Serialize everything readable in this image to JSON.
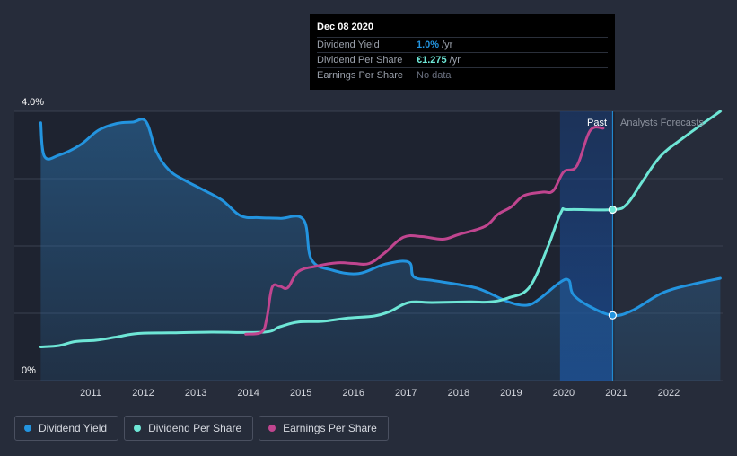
{
  "tooltip": {
    "date": "Dec 08 2020",
    "rows": [
      {
        "label": "Dividend Yield",
        "value": "1.0%",
        "unit": "/yr",
        "color": "#2394df"
      },
      {
        "label": "Dividend Per Share",
        "value": "€1.275",
        "unit": "/yr",
        "color": "#6ee6d6"
      },
      {
        "label": "Earnings Per Share",
        "value": "No data",
        "unit": "",
        "color": "#6b7180"
      }
    ]
  },
  "legend": [
    {
      "label": "Dividend Yield",
      "color": "#2394df"
    },
    {
      "label": "Dividend Per Share",
      "color": "#6ee6d6"
    },
    {
      "label": "Earnings Per Share",
      "color": "#c0458f"
    }
  ],
  "chart_data": {
    "type": "line",
    "y_top_label": "4.0%",
    "y_bottom_label": "0%",
    "ylim": [
      0,
      4.0
    ],
    "xlim": [
      2010.0,
      2023.0
    ],
    "x_ticks": [
      "2011",
      "2012",
      "2013",
      "2014",
      "2015",
      "2016",
      "2017",
      "2018",
      "2019",
      "2020",
      "2021",
      "2022"
    ],
    "past_label": "Past",
    "forecast_label": "Analysts Forecasts",
    "past_region": [
      2019.93,
      2020.93
    ],
    "hover_x": 2020.93,
    "series": [
      {
        "name": "Dividend Yield",
        "color": "#2394df",
        "fill": true,
        "points": [
          [
            2010.05,
            3.83
          ],
          [
            2010.12,
            3.33
          ],
          [
            2010.4,
            3.35
          ],
          [
            2010.8,
            3.5
          ],
          [
            2011.15,
            3.72
          ],
          [
            2011.5,
            3.82
          ],
          [
            2011.8,
            3.84
          ],
          [
            2012.05,
            3.85
          ],
          [
            2012.25,
            3.4
          ],
          [
            2012.5,
            3.12
          ],
          [
            2012.8,
            2.97
          ],
          [
            2013.1,
            2.85
          ],
          [
            2013.5,
            2.68
          ],
          [
            2013.85,
            2.45
          ],
          [
            2014.2,
            2.42
          ],
          [
            2014.6,
            2.41
          ],
          [
            2015.05,
            2.39
          ],
          [
            2015.2,
            1.8
          ],
          [
            2015.6,
            1.64
          ],
          [
            2016.1,
            1.59
          ],
          [
            2016.6,
            1.73
          ],
          [
            2017.05,
            1.76
          ],
          [
            2017.15,
            1.54
          ],
          [
            2017.5,
            1.49
          ],
          [
            2018.2,
            1.4
          ],
          [
            2018.5,
            1.33
          ],
          [
            2018.95,
            1.17
          ],
          [
            2019.3,
            1.12
          ],
          [
            2019.55,
            1.22
          ],
          [
            2019.93,
            1.46
          ],
          [
            2020.1,
            1.49
          ],
          [
            2020.18,
            1.28
          ],
          [
            2020.5,
            1.1
          ],
          [
            2020.93,
            0.97
          ],
          [
            2021.3,
            1.04
          ],
          [
            2021.9,
            1.31
          ],
          [
            2022.5,
            1.44
          ],
          [
            2022.98,
            1.52
          ]
        ]
      },
      {
        "name": "Dividend Per Share",
        "color": "#6ee6d6",
        "fill": false,
        "points": [
          [
            2010.05,
            0.5
          ],
          [
            2010.4,
            0.52
          ],
          [
            2010.7,
            0.58
          ],
          [
            2011.1,
            0.6
          ],
          [
            2011.5,
            0.65
          ],
          [
            2011.9,
            0.7
          ],
          [
            2012.5,
            0.71
          ],
          [
            2013.3,
            0.72
          ],
          [
            2014.3,
            0.72
          ],
          [
            2014.6,
            0.8
          ],
          [
            2014.95,
            0.87
          ],
          [
            2015.4,
            0.88
          ],
          [
            2015.9,
            0.93
          ],
          [
            2016.4,
            0.96
          ],
          [
            2016.7,
            1.03
          ],
          [
            2017.05,
            1.16
          ],
          [
            2017.5,
            1.16
          ],
          [
            2018.2,
            1.17
          ],
          [
            2018.6,
            1.17
          ],
          [
            2018.95,
            1.23
          ],
          [
            2019.35,
            1.39
          ],
          [
            2019.7,
            1.99
          ],
          [
            2019.95,
            2.5
          ],
          [
            2020.1,
            2.54
          ],
          [
            2020.93,
            2.54
          ],
          [
            2021.2,
            2.62
          ],
          [
            2021.5,
            2.96
          ],
          [
            2021.85,
            3.34
          ],
          [
            2022.3,
            3.62
          ],
          [
            2022.98,
            4.0
          ]
        ]
      },
      {
        "name": "Earnings Per Share",
        "color": "#c0458f",
        "fill": false,
        "points": [
          [
            2013.95,
            0.69
          ],
          [
            2014.25,
            0.72
          ],
          [
            2014.35,
            0.92
          ],
          [
            2014.45,
            1.38
          ],
          [
            2014.6,
            1.4
          ],
          [
            2014.75,
            1.38
          ],
          [
            2014.95,
            1.62
          ],
          [
            2015.3,
            1.7
          ],
          [
            2015.7,
            1.75
          ],
          [
            2016.0,
            1.74
          ],
          [
            2016.3,
            1.74
          ],
          [
            2016.6,
            1.9
          ],
          [
            2016.95,
            2.13
          ],
          [
            2017.3,
            2.14
          ],
          [
            2017.7,
            2.1
          ],
          [
            2018.0,
            2.17
          ],
          [
            2018.5,
            2.29
          ],
          [
            2018.75,
            2.47
          ],
          [
            2019.0,
            2.58
          ],
          [
            2019.25,
            2.75
          ],
          [
            2019.6,
            2.8
          ],
          [
            2019.8,
            2.82
          ],
          [
            2020.0,
            3.1
          ],
          [
            2020.25,
            3.19
          ],
          [
            2020.5,
            3.71
          ],
          [
            2020.75,
            3.75
          ]
        ]
      }
    ],
    "markers": [
      {
        "series": "Dividend Per Share",
        "x": 2020.93,
        "y": 2.54
      },
      {
        "series": "Dividend Yield",
        "x": 2020.93,
        "y": 0.97
      }
    ]
  }
}
